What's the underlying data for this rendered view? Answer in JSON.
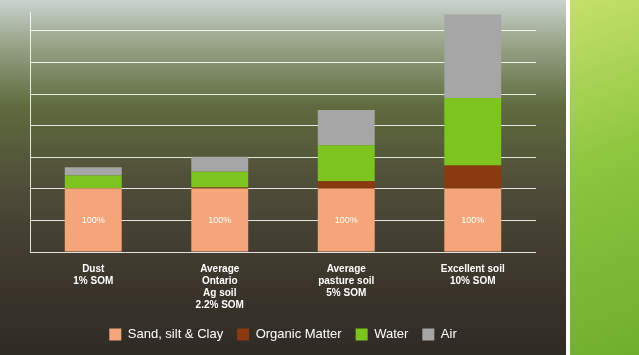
{
  "chart_data": {
    "type": "bar",
    "categories": [
      [
        "Dust",
        "1% SOM"
      ],
      [
        "Average",
        "Ontario",
        "Ag soil",
        "2.2% SOM"
      ],
      [
        "Average",
        "pasture soil",
        "5% SOM"
      ],
      [
        "Excellent soil",
        "10% SOM"
      ]
    ],
    "series": [
      {
        "name": "Sand, silt & Clay",
        "color": "#f4a57a",
        "values": [
          100,
          100,
          100,
          100
        ],
        "value_labels": [
          "100%",
          "100%",
          "100%",
          "100%"
        ],
        "data_labels": true
      },
      {
        "name": "Organic Matter",
        "color": "#8b3a10",
        "values": [
          1,
          2,
          12,
          37
        ]
      },
      {
        "name": "Water",
        "color": "#7dc41f",
        "values": [
          20,
          25,
          57,
          107
        ]
      },
      {
        "name": "Air",
        "color": "#a6a6a6",
        "values": [
          13,
          24,
          56,
          132
        ]
      }
    ],
    "ylim": [
      0,
      380
    ],
    "yticks": [
      0,
      50,
      100,
      150,
      200,
      250,
      300,
      350
    ],
    "stacked": true,
    "grid": true,
    "legend": "bottom",
    "tick_labels": "x"
  }
}
